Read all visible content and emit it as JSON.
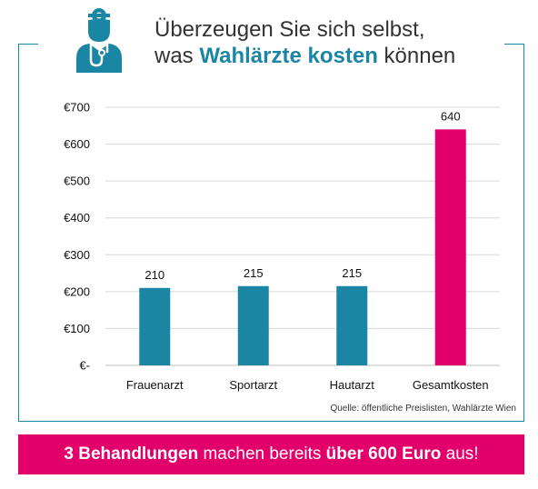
{
  "header": {
    "line1": "Überzeugen Sie sich selbst,",
    "line2_pre": "was ",
    "line2_accent": "Wahlärzte kosten",
    "line2_post": " können"
  },
  "icon": "doctor-icon",
  "colors": {
    "accent": "#1b86a3",
    "highlight": "#e2006a",
    "grid": "#d9d9d9"
  },
  "chart_data": {
    "type": "bar",
    "categories": [
      "Frauenarzt",
      "Sportarzt",
      "Hautarzt",
      "Gesamtkosten"
    ],
    "values": [
      210,
      215,
      215,
      640
    ],
    "data_labels": [
      "210",
      "215",
      "215",
      "640"
    ],
    "bar_colors": [
      "#1b86a3",
      "#1b86a3",
      "#1b86a3",
      "#e2006a"
    ],
    "y_ticks": [
      0,
      100,
      200,
      300,
      400,
      500,
      600,
      700
    ],
    "y_tick_labels": [
      "€-",
      "€100",
      "€200",
      "€300",
      "€400",
      "€500",
      "€600",
      "€700"
    ],
    "ylim": [
      0,
      700
    ],
    "grid": true,
    "title": "",
    "xlabel": "",
    "ylabel": ""
  },
  "source": "Quelle: öffentliche Preislisten, Wahlärzte Wien",
  "banner": {
    "b1": "3 Behandlungen",
    "t1": " machen bereits ",
    "b2": "über 600 Euro",
    "t2": " aus!"
  }
}
